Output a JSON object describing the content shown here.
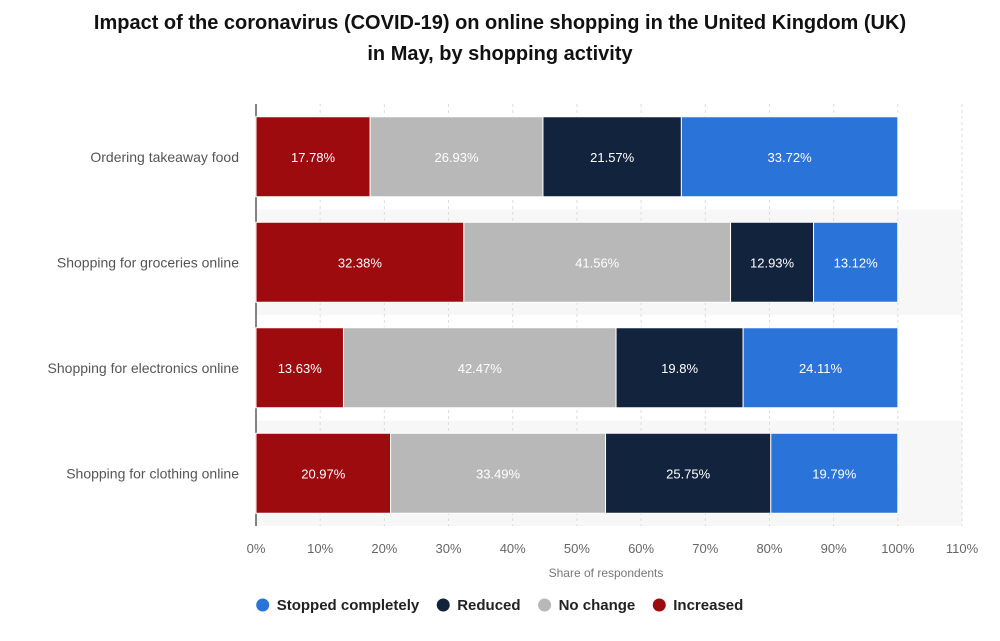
{
  "chart_data": {
    "type": "bar",
    "orientation": "horizontal",
    "stacked": true,
    "title": "Impact of the coronavirus (COVID-19) on online shopping in the United Kingdom (UK) in May, by shopping activity",
    "title_lines": [
      "Impact of the coronavirus (COVID-19) on online shopping in the United Kingdom (UK)",
      "in May, by shopping activity"
    ],
    "categories": [
      "Ordering takeaway food",
      "Shopping for groceries online",
      "Shopping for electronics online",
      "Shopping for clothing online"
    ],
    "series": [
      {
        "name": "Increased",
        "color": "#9e0b0f",
        "label_color": "#ffffff",
        "values": [
          17.78,
          32.38,
          13.63,
          20.97
        ],
        "labels": [
          "17.78%",
          "32.38%",
          "13.63%",
          "20.97%"
        ]
      },
      {
        "name": "No change",
        "color": "#b8b8b8",
        "label_color": "#ffffff",
        "values": [
          26.93,
          41.56,
          42.47,
          33.49
        ],
        "labels": [
          "26.93%",
          "41.56%",
          "42.47%",
          "33.49%"
        ]
      },
      {
        "name": "Reduced",
        "color": "#12233d",
        "label_color": "#ffffff",
        "values": [
          21.57,
          12.93,
          19.8,
          25.75
        ],
        "labels": [
          "21.57%",
          "12.93%",
          "19.8%",
          "25.75%"
        ]
      },
      {
        "name": "Stopped completely",
        "color": "#2a73d9",
        "label_color": "#ffffff",
        "values": [
          33.72,
          13.12,
          24.11,
          19.79
        ],
        "labels": [
          "33.72%",
          "13.12%",
          "24.11%",
          "19.79%"
        ]
      }
    ],
    "legend_order": [
      "Stopped completely",
      "Reduced",
      "No change",
      "Increased"
    ],
    "legend_position": "bottom",
    "xlabel": "Share of respondents",
    "ylabel": "",
    "xlim": [
      0,
      110
    ],
    "xticks": [
      0,
      10,
      20,
      30,
      40,
      50,
      60,
      70,
      80,
      90,
      100,
      110
    ],
    "xtick_labels": [
      "0%",
      "10%",
      "20%",
      "30%",
      "40%",
      "50%",
      "60%",
      "70%",
      "80%",
      "90%",
      "100%",
      "110%"
    ],
    "grid": true
  }
}
